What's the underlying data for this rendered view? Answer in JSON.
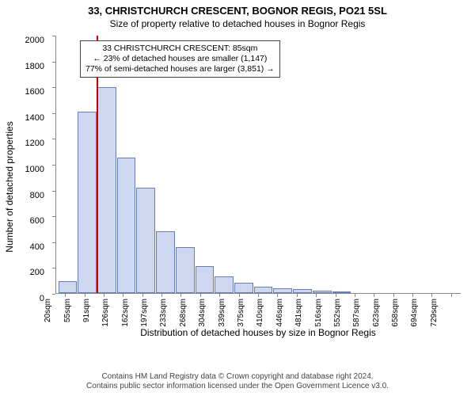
{
  "title": "33, CHRISTCHURCH CRESCENT, BOGNOR REGIS, PO21 5SL",
  "subtitle": "Size of property relative to detached houses in Bognor Regis",
  "chart": {
    "type": "histogram",
    "ylabel": "Number of detached properties",
    "xlabel": "Distribution of detached houses by size in Bognor Regis",
    "ylim": [
      0,
      2000
    ],
    "ytick_step": 200,
    "bar_fill": "#cdd8f0",
    "bar_border": "#6a7db5",
    "background": "#ffffff",
    "axis_color": "#888888",
    "marker_color": "#cc0000",
    "marker_position": 0.1,
    "x_categories": [
      "20sqm",
      "55sqm",
      "91sqm",
      "126sqm",
      "162sqm",
      "197sqm",
      "233sqm",
      "268sqm",
      "304sqm",
      "339sqm",
      "375sqm",
      "410sqm",
      "446sqm",
      "481sqm",
      "516sqm",
      "552sqm",
      "587sqm",
      "623sqm",
      "658sqm",
      "694sqm",
      "729sqm"
    ],
    "values": [
      90,
      1410,
      1600,
      1050,
      820,
      480,
      360,
      210,
      130,
      80,
      50,
      40,
      30,
      20,
      10,
      0,
      0,
      0,
      0,
      0,
      0
    ],
    "annotation": {
      "line1": "33 CHRISTCHURCH CRESCENT: 85sqm",
      "line2": "← 23% of detached houses are smaller (1,147)",
      "line3": "77% of semi-detached houses are larger (3,851) →"
    }
  },
  "footer": {
    "line1": "Contains HM Land Registry data © Crown copyright and database right 2024.",
    "line2": "Contains public sector information licensed under the Open Government Licence v3.0."
  }
}
